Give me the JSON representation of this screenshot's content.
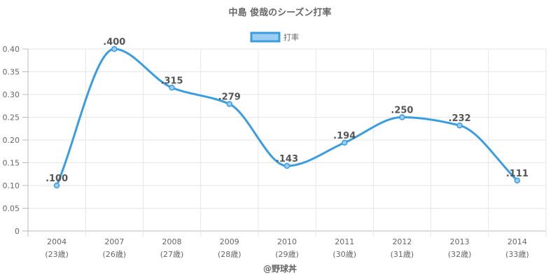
{
  "chart_data": {
    "type": "line",
    "title": "中島 俊哉のシーズン打率",
    "categories": [
      "2004",
      "2007",
      "2008",
      "2009",
      "2010",
      "2011",
      "2012",
      "2013",
      "2014"
    ],
    "sublabels": [
      "(23歳)",
      "(26歳)",
      "(27歳)",
      "(28歳)",
      "(29歳)",
      "(30歳)",
      "(31歳)",
      "(32歳)",
      "(33歳)"
    ],
    "series": [
      {
        "name": "打率",
        "values": [
          0.1,
          0.4,
          0.315,
          0.279,
          0.143,
          0.194,
          0.25,
          0.232,
          0.111
        ],
        "labels": [
          ".100",
          ".400",
          ".315",
          ".279",
          ".143",
          ".194",
          ".250",
          ".232",
          ".111"
        ]
      }
    ],
    "ylim": [
      0,
      0.4
    ],
    "yticks": [
      "0",
      "0.05",
      "0.10",
      "0.15",
      "0.20",
      "0.25",
      "0.30",
      "0.35",
      "0.40"
    ],
    "ytick_values": [
      0,
      0.05,
      0.1,
      0.15,
      0.2,
      0.25,
      0.3,
      0.35,
      0.4
    ],
    "grid": true,
    "legend": "top-center",
    "colors": {
      "line": "#3a9de0",
      "fill": "#9dcdf2"
    }
  },
  "credit": "@野球丼"
}
